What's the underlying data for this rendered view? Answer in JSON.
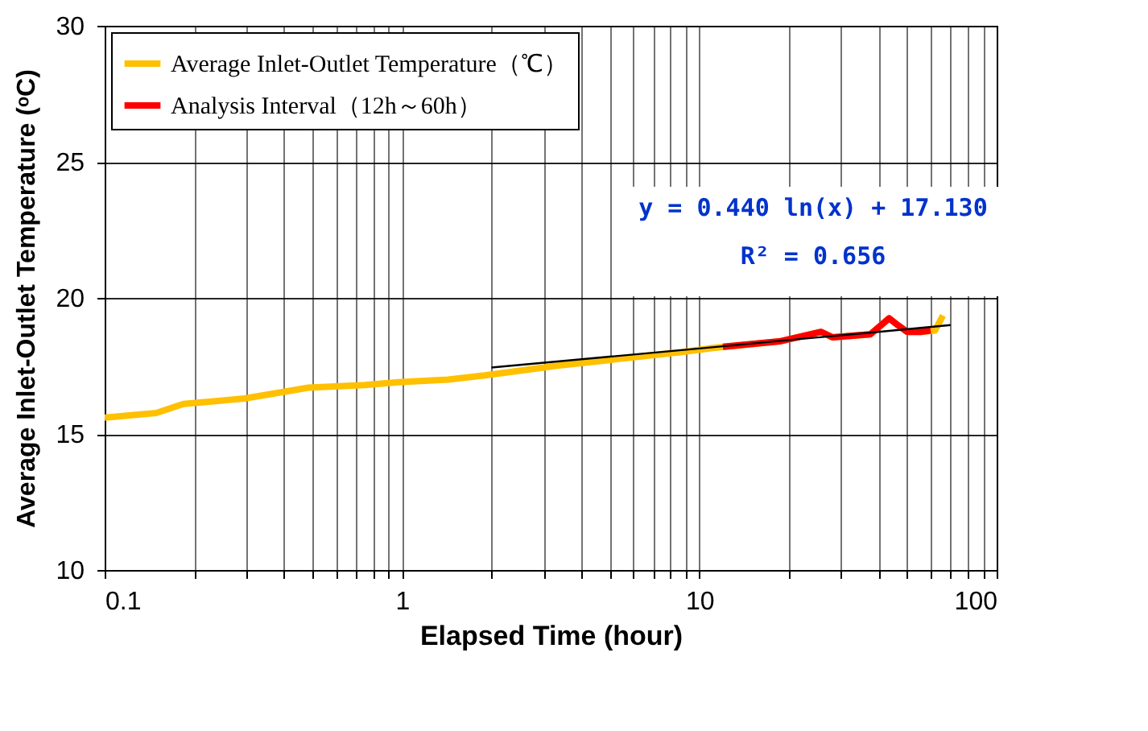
{
  "chart_data": {
    "type": "line",
    "xlabel": "Elapsed Time (hour)",
    "ylabel": "Average Inlet-Outlet Temperature (ᵒC)",
    "log": "x",
    "grid": true,
    "legend": "top left",
    "line_style": "solid",
    "marker": "none",
    "xlim": [
      0.1,
      100
    ],
    "ylim": [
      10,
      30
    ],
    "xticks": [
      0.1,
      {
        "value": 0.2,
        "label": null
      },
      {
        "value": 0.3,
        "label": null
      },
      {
        "value": 0.4,
        "label": null
      },
      {
        "value": 0.5,
        "label": null
      },
      {
        "value": 0.6,
        "label": null
      },
      {
        "value": 0.7,
        "label": null
      },
      {
        "value": 0.8,
        "label": null
      },
      {
        "value": 0.9,
        "label": null
      },
      1,
      {
        "value": 2,
        "label": null
      },
      {
        "value": 3,
        "label": null
      },
      {
        "value": 4,
        "label": null
      },
      {
        "value": 5,
        "label": null
      },
      {
        "value": 6,
        "label": null
      },
      {
        "value": 7,
        "label": null
      },
      {
        "value": 8,
        "label": null
      },
      {
        "value": 9,
        "label": null
      },
      10,
      {
        "value": 20,
        "label": null
      },
      {
        "value": 30,
        "label": null
      },
      {
        "value": 40,
        "label": null
      },
      {
        "value": 50,
        "label": null
      },
      {
        "value": 60,
        "label": null
      },
      {
        "value": 70,
        "label": null
      },
      {
        "value": 80,
        "label": null
      },
      {
        "value": 90,
        "label": null
      },
      100
    ],
    "yticks": [
      10,
      15,
      20,
      25,
      30
    ],
    "annotations": [
      "y = 0.440 ln(x) + 17.130",
      "R² = 0.656"
    ],
    "series": [
      {
        "name": "Average Inlet-Outlet Temperature（℃）",
        "color": "#ffc000",
        "x": [
          0.1,
          0.149,
          0.184,
          0.295,
          0.485,
          0.75,
          0.97,
          1.43,
          1.9,
          3.0,
          3.27,
          8.6,
          11.1,
          18.6,
          25.7,
          28.1,
          37.6,
          43.5,
          46.5,
          50,
          55.6,
          62,
          66
        ],
        "values": [
          15.6,
          15.77,
          16.1,
          16.3,
          16.7,
          16.8,
          16.9,
          17.0,
          17.15,
          17.44,
          17.5,
          18.0,
          18.16,
          18.4,
          18.75,
          18.55,
          18.66,
          19.25,
          19.0,
          18.75,
          18.75,
          18.8,
          19.35
        ]
      },
      {
        "name": "Analysis Interval（12h～60h）",
        "color": "#ff0000",
        "x": [
          12,
          18.6,
          25.7,
          28.1,
          37.6,
          43.5,
          46.5,
          50,
          55.6,
          60
        ],
        "values": [
          18.2,
          18.4,
          18.75,
          18.55,
          18.66,
          19.25,
          19.0,
          18.75,
          18.75,
          18.8
        ]
      },
      {
        "type": "line",
        "color": "#000000",
        "x": [
          2,
          5,
          10,
          20,
          40,
          70
        ],
        "values": [
          17.44,
          17.84,
          18.14,
          18.45,
          18.75,
          19.0
        ]
      }
    ]
  }
}
